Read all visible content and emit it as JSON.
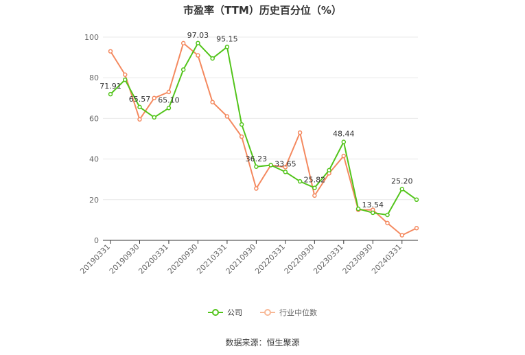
{
  "chart_data": {
    "type": "line",
    "title": "市盈率（TTM）历史百分位（%）",
    "xlabel": "",
    "ylabel": "",
    "ylim": [
      0,
      100
    ],
    "yticks": [
      0,
      20,
      40,
      60,
      80,
      100
    ],
    "grid": true,
    "legend_position": "bottom",
    "x": [
      "20190331",
      "20190630",
      "20190930",
      "20191231",
      "20200331",
      "20200630",
      "20200930",
      "20201231",
      "20210331",
      "20210630",
      "20210930",
      "20211231",
      "20220331",
      "20220630",
      "20220930",
      "20221231",
      "20230331",
      "20230630",
      "20230930",
      "20231231",
      "20240331",
      "20240630"
    ],
    "x_tick_labels": [
      "20190331",
      "20190930",
      "20200331",
      "20200930",
      "20210331",
      "20210930",
      "20220331",
      "20220930",
      "20230331",
      "20230930",
      "20240331"
    ],
    "series": [
      {
        "name": "公司",
        "color": "#52c41a",
        "values": [
          71.91,
          79.0,
          65.57,
          60.5,
          65.1,
          84.0,
          97.03,
          89.5,
          95.15,
          57.0,
          36.23,
          37.0,
          33.65,
          29.0,
          25.82,
          34.5,
          48.44,
          15.5,
          13.54,
          12.5,
          25.2,
          20.0
        ]
      },
      {
        "name": "行业中位数",
        "color": "#f4895f",
        "values": [
          93.0,
          81.5,
          59.5,
          70.0,
          73.0,
          97.0,
          91.0,
          68.0,
          61.0,
          51.0,
          25.5,
          37.0,
          36.0,
          53.0,
          22.0,
          33.0,
          41.5,
          15.0,
          15.0,
          8.5,
          2.5,
          6.0
        ]
      }
    ],
    "data_labels": [
      {
        "series": 0,
        "index": 0,
        "text": "71.91"
      },
      {
        "series": 0,
        "index": 2,
        "text": "65.57"
      },
      {
        "series": 0,
        "index": 4,
        "text": "65.10"
      },
      {
        "series": 0,
        "index": 6,
        "text": "97.03"
      },
      {
        "series": 0,
        "index": 8,
        "text": "95.15"
      },
      {
        "series": 0,
        "index": 10,
        "text": "36.23"
      },
      {
        "series": 0,
        "index": 12,
        "text": "33.65"
      },
      {
        "series": 0,
        "index": 14,
        "text": "25.82"
      },
      {
        "series": 0,
        "index": 16,
        "text": "48.44"
      },
      {
        "series": 0,
        "index": 18,
        "text": "13.54"
      },
      {
        "series": 0,
        "index": 20,
        "text": "25.20"
      }
    ]
  },
  "source": "数据来源：恒生聚源"
}
